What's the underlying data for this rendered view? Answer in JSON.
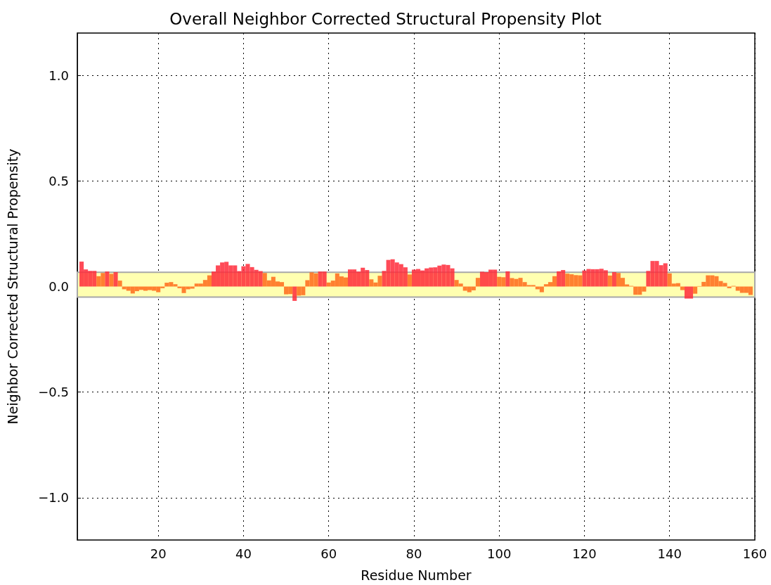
{
  "chart_data": {
    "type": "bar",
    "title": "Overall Neighbor Corrected Structural Propensity Plot",
    "xlabel": "Residue Number",
    "ylabel": "Neighbor Corrected Structural Propensity",
    "x": [
      2,
      3,
      4,
      5,
      6,
      7,
      8,
      9,
      10,
      11,
      12,
      13,
      14,
      15,
      16,
      17,
      18,
      19,
      20,
      21,
      22,
      23,
      24,
      25,
      26,
      27,
      28,
      29,
      30,
      31,
      32,
      33,
      34,
      35,
      36,
      37,
      38,
      39,
      40,
      41,
      42,
      43,
      44,
      45,
      46,
      47,
      48,
      49,
      50,
      51,
      52,
      53,
      54,
      55,
      56,
      57,
      58,
      59,
      60,
      61,
      62,
      63,
      64,
      65,
      66,
      67,
      68,
      69,
      70,
      71,
      72,
      73,
      74,
      75,
      76,
      77,
      78,
      79,
      80,
      81,
      82,
      83,
      84,
      85,
      86,
      87,
      88,
      89,
      90,
      91,
      92,
      93,
      94,
      95,
      96,
      97,
      98,
      99,
      100,
      101,
      102,
      103,
      104,
      105,
      106,
      107,
      108,
      109,
      110,
      111,
      112,
      113,
      114,
      115,
      116,
      117,
      118,
      119,
      120,
      121,
      122,
      123,
      124,
      125,
      126,
      127,
      128,
      129,
      130,
      131,
      132,
      133,
      134,
      135,
      136,
      137,
      138,
      139,
      140,
      141,
      142,
      143,
      144,
      145,
      146,
      147,
      148,
      149,
      150,
      151,
      152,
      153,
      154,
      155,
      156,
      157,
      158,
      159
    ],
    "values": [
      0.118,
      0.081,
      0.074,
      0.074,
      0.049,
      0.064,
      0.071,
      0.06,
      0.068,
      0.028,
      -0.013,
      -0.02,
      -0.033,
      -0.022,
      -0.016,
      -0.02,
      -0.017,
      -0.02,
      -0.027,
      -0.008,
      0.018,
      0.021,
      0.011,
      -0.008,
      -0.031,
      -0.013,
      -0.01,
      0.014,
      0.014,
      0.031,
      0.053,
      0.071,
      0.1,
      0.114,
      0.117,
      0.1,
      0.1,
      0.073,
      0.096,
      0.107,
      0.092,
      0.079,
      0.073,
      0.064,
      0.029,
      0.046,
      0.024,
      0.021,
      -0.037,
      -0.036,
      -0.068,
      -0.043,
      -0.041,
      0.03,
      0.067,
      0.062,
      0.071,
      0.071,
      0.019,
      0.028,
      0.062,
      0.048,
      0.043,
      0.081,
      0.081,
      0.071,
      0.089,
      0.078,
      0.034,
      0.019,
      0.051,
      0.074,
      0.126,
      0.129,
      0.114,
      0.106,
      0.091,
      0.057,
      0.08,
      0.083,
      0.076,
      0.086,
      0.09,
      0.091,
      0.099,
      0.104,
      0.102,
      0.086,
      0.031,
      0.014,
      -0.02,
      -0.027,
      -0.018,
      0.041,
      0.07,
      0.068,
      0.08,
      0.08,
      0.046,
      0.044,
      0.072,
      0.04,
      0.036,
      0.041,
      0.021,
      0.007,
      0.007,
      -0.013,
      -0.027,
      0.011,
      0.021,
      0.049,
      0.072,
      0.078,
      0.061,
      0.058,
      0.054,
      0.053,
      0.076,
      0.083,
      0.082,
      0.082,
      0.084,
      0.077,
      0.052,
      0.068,
      0.064,
      0.041,
      0.01,
      0.003,
      -0.039,
      -0.039,
      -0.024,
      0.074,
      0.121,
      0.121,
      0.101,
      0.11,
      0.062,
      0.014,
      0.016,
      -0.017,
      -0.057,
      -0.057,
      -0.034,
      0.002,
      0.022,
      0.053,
      0.053,
      0.049,
      0.026,
      0.017,
      -0.008,
      0.003,
      -0.02,
      -0.03,
      -0.03,
      -0.04
    ],
    "colors": [
      "#ff2a3a",
      "#ff2a3a",
      "#ff2a3a",
      "#ff2a3a",
      "#ff6a1a",
      "#ff6a1a",
      "#ff2a3a",
      "#ff6a1a",
      "#ff2a3a",
      "#ff6a1a",
      "#ff6a1a",
      "#ff6a1a",
      "#ff6a1a",
      "#ff6a1a",
      "#ff6a1a",
      "#ff6a1a",
      "#ff6a1a",
      "#ff6a1a",
      "#ff6a1a",
      "#ff6a1a",
      "#ff6a1a",
      "#ff6a1a",
      "#ff6a1a",
      "#ff6a1a",
      "#ff6a1a",
      "#ff6a1a",
      "#ff6a1a",
      "#ff6a1a",
      "#ff6a1a",
      "#ff6a1a",
      "#ff6a1a",
      "#ff2a3a",
      "#ff2a3a",
      "#ff2a3a",
      "#ff2a3a",
      "#ff2a3a",
      "#ff2a3a",
      "#ff2a3a",
      "#ff2a3a",
      "#ff2a3a",
      "#ff2a3a",
      "#ff2a3a",
      "#ff2a3a",
      "#ff6a1a",
      "#ff6a1a",
      "#ff6a1a",
      "#ff6a1a",
      "#ff6a1a",
      "#ff6a1a",
      "#ff6a1a",
      "#ff2a3a",
      "#ff6a1a",
      "#ff6a1a",
      "#ff6a1a",
      "#ff6a1a",
      "#ff6a1a",
      "#ff2a3a",
      "#ff2a3a",
      "#ff6a1a",
      "#ff6a1a",
      "#ff6a1a",
      "#ff6a1a",
      "#ff6a1a",
      "#ff2a3a",
      "#ff2a3a",
      "#ff2a3a",
      "#ff2a3a",
      "#ff2a3a",
      "#ff6a1a",
      "#ff6a1a",
      "#ff6a1a",
      "#ff2a3a",
      "#ff2a3a",
      "#ff2a3a",
      "#ff2a3a",
      "#ff2a3a",
      "#ff2a3a",
      "#ff6a1a",
      "#ff2a3a",
      "#ff2a3a",
      "#ff2a3a",
      "#ff2a3a",
      "#ff2a3a",
      "#ff2a3a",
      "#ff2a3a",
      "#ff2a3a",
      "#ff2a3a",
      "#ff2a3a",
      "#ff6a1a",
      "#ff6a1a",
      "#ff6a1a",
      "#ff6a1a",
      "#ff6a1a",
      "#ff6a1a",
      "#ff2a3a",
      "#ff2a3a",
      "#ff2a3a",
      "#ff2a3a",
      "#ff6a1a",
      "#ff6a1a",
      "#ff2a3a",
      "#ff6a1a",
      "#ff6a1a",
      "#ff6a1a",
      "#ff6a1a",
      "#ff6a1a",
      "#ff6a1a",
      "#ff6a1a",
      "#ff6a1a",
      "#ff6a1a",
      "#ff6a1a",
      "#ff6a1a",
      "#ff2a3a",
      "#ff2a3a",
      "#ff6a1a",
      "#ff6a1a",
      "#ff6a1a",
      "#ff6a1a",
      "#ff2a3a",
      "#ff2a3a",
      "#ff2a3a",
      "#ff2a3a",
      "#ff2a3a",
      "#ff2a3a",
      "#ff6a1a",
      "#ff2a3a",
      "#ff6a1a",
      "#ff6a1a",
      "#ff6a1a",
      "#ff6a1a",
      "#ff6a1a",
      "#ff6a1a",
      "#ff6a1a",
      "#ff2a3a",
      "#ff2a3a",
      "#ff2a3a",
      "#ff2a3a",
      "#ff2a3a",
      "#ff6a1a",
      "#ff6a1a",
      "#ff6a1a",
      "#ff6a1a",
      "#ff2a3a",
      "#ff2a3a",
      "#ff6a1a",
      "#ff6a1a",
      "#ff6a1a",
      "#ff6a1a",
      "#ff6a1a",
      "#ff6a1a",
      "#ff6a1a",
      "#ff6a1a",
      "#ff6a1a",
      "#ff6a1a",
      "#ff6a1a",
      "#ff6a1a",
      "#ff6a1a",
      "#ff6a1a"
    ],
    "xlim": [
      1,
      160
    ],
    "xticks": [
      20,
      40,
      60,
      80,
      100,
      120,
      140,
      160
    ],
    "ylim": [
      -1.2,
      1.2
    ],
    "yticks": [
      {
        "value": -1.0,
        "label": "−1.0"
      },
      {
        "value": -0.5,
        "label": "−0.5"
      },
      {
        "value": 0,
        "label": "0.0"
      },
      {
        "value": 0.5,
        "label": "0.5"
      },
      {
        "value": 1.0,
        "label": "1.0"
      }
    ],
    "bands": [
      {
        "axis": "y",
        "from": -0.05,
        "to": 0.067,
        "color": "#ffffb0"
      }
    ],
    "grid": true
  }
}
